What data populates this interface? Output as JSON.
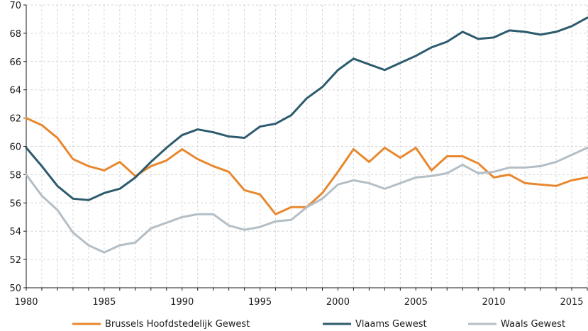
{
  "chart_data": {
    "type": "line",
    "title": "",
    "xlabel": "",
    "ylabel": "",
    "xlim": [
      1980,
      2016
    ],
    "ylim": [
      50,
      70
    ],
    "x_ticks": [
      "1980",
      "1985",
      "1990",
      "1995",
      "2000",
      "2005",
      "2010",
      "2015"
    ],
    "y_ticks": [
      "50",
      "52",
      "54",
      "56",
      "58",
      "60",
      "62",
      "64",
      "66",
      "68",
      "70"
    ],
    "grid": true,
    "legend_position": "bottom",
    "x": [
      1980,
      1981,
      1982,
      1983,
      1984,
      1985,
      1986,
      1987,
      1988,
      1989,
      1990,
      1991,
      1992,
      1993,
      1994,
      1995,
      1996,
      1997,
      1998,
      1999,
      2000,
      2001,
      2002,
      2003,
      2004,
      2005,
      2006,
      2007,
      2008,
      2009,
      2010,
      2011,
      2012,
      2013,
      2014,
      2015,
      2016
    ],
    "series": [
      {
        "name": "Brussels Hoofdstedelijk Gewest",
        "color": "#e8882e",
        "values": [
          62.0,
          61.5,
          60.6,
          59.1,
          58.6,
          58.3,
          58.9,
          57.9,
          58.6,
          59.0,
          59.8,
          59.1,
          58.6,
          58.2,
          56.9,
          56.6,
          55.2,
          55.7,
          55.7,
          56.7,
          58.2,
          59.8,
          58.9,
          59.9,
          59.2,
          59.9,
          58.3,
          59.3,
          59.3,
          58.8,
          57.8,
          58.0,
          57.4,
          57.3,
          57.2,
          57.6,
          57.8
        ]
      },
      {
        "name": "Vlaams Gewest",
        "color": "#2d5b6e",
        "values": [
          59.9,
          58.6,
          57.2,
          56.3,
          56.2,
          56.7,
          57.0,
          57.8,
          58.9,
          59.9,
          60.8,
          61.2,
          61.0,
          60.7,
          60.6,
          61.4,
          61.6,
          62.2,
          63.4,
          64.2,
          65.4,
          66.2,
          65.8,
          65.4,
          65.9,
          66.4,
          67.0,
          67.4,
          68.1,
          67.6,
          67.7,
          68.2,
          68.1,
          67.9,
          68.1,
          68.5,
          69.1
        ]
      },
      {
        "name": "Waals Gewest",
        "color": "#b3bec6",
        "values": [
          58.0,
          56.5,
          55.5,
          53.9,
          53.0,
          52.5,
          53.0,
          53.2,
          54.2,
          54.6,
          55.0,
          55.2,
          55.2,
          54.4,
          54.1,
          54.3,
          54.7,
          54.8,
          55.7,
          56.3,
          57.3,
          57.6,
          57.4,
          57.0,
          57.4,
          57.8,
          57.9,
          58.1,
          58.7,
          58.1,
          58.2,
          58.5,
          58.5,
          58.6,
          58.9,
          59.4,
          59.9
        ]
      }
    ]
  }
}
